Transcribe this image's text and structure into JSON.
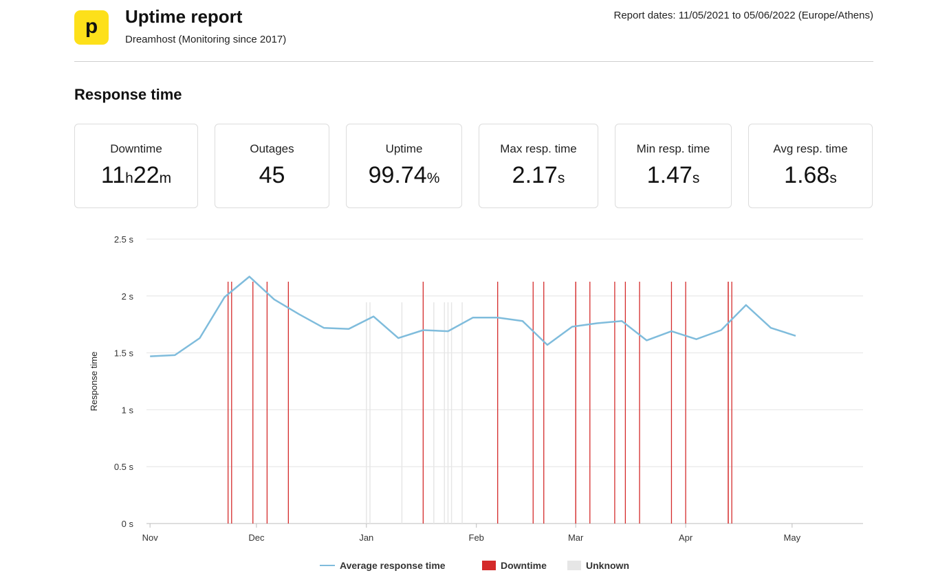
{
  "header": {
    "logo_letter": "p",
    "title": "Uptime report",
    "subtitle": "Dreamhost (Monitoring since 2017)",
    "report_dates": "Report dates: 11/05/2021 to 05/06/2022 (Europe/Athens)"
  },
  "section_title": "Response time",
  "stats": {
    "downtime": {
      "label": "Downtime",
      "h": "11",
      "h_unit": "h",
      "m": "22",
      "m_unit": "m"
    },
    "outages": {
      "label": "Outages",
      "value": "45"
    },
    "uptime": {
      "label": "Uptime",
      "value": "99.74",
      "unit": "%"
    },
    "max_resp": {
      "label": "Max resp. time",
      "value": "2.17",
      "unit": "s"
    },
    "min_resp": {
      "label": "Min resp. time",
      "value": "1.47",
      "unit": "s"
    },
    "avg_resp": {
      "label": "Avg resp. time",
      "value": "1.68",
      "unit": "s"
    }
  },
  "legend": {
    "average": "Average response time",
    "downtime": "Downtime",
    "unknown": "Unknown"
  },
  "colors": {
    "line": "#7fbcdc",
    "downtime": "#d42a2a",
    "unknown": "#e6e6e6",
    "grid": "#e4e4e4",
    "logo": "#fde01a"
  },
  "chart_data": {
    "type": "line",
    "title": "",
    "xlabel": "",
    "ylabel": "Response time",
    "ylim": [
      0,
      2.5
    ],
    "yticks": [
      0,
      0.5,
      1,
      1.5,
      2,
      2.5
    ],
    "ytick_labels": [
      "0 s",
      "0.5 s",
      "1 s",
      "1.5 s",
      "2 s",
      "2.5 s"
    ],
    "xlim": [
      "2021-10-31",
      "2022-05-21"
    ],
    "xticks": [
      "2021-11-01",
      "2021-12-01",
      "2022-01-01",
      "2022-02-01",
      "2022-03-01",
      "2022-04-01",
      "2022-05-01"
    ],
    "xtick_labels": [
      "Nov",
      "Dec",
      "Jan",
      "Feb",
      "Mar",
      "Apr",
      "May"
    ],
    "grid": true,
    "legend_position": "bottom",
    "series": [
      {
        "name": "Average response time",
        "x": [
          "2021-11-01",
          "2021-11-08",
          "2021-11-15",
          "2021-11-22",
          "2021-11-29",
          "2021-12-06",
          "2021-12-13",
          "2021-12-20",
          "2021-12-27",
          "2022-01-03",
          "2022-01-10",
          "2022-01-17",
          "2022-01-24",
          "2022-01-31",
          "2022-02-07",
          "2022-02-14",
          "2022-02-21",
          "2022-02-28",
          "2022-03-07",
          "2022-03-14",
          "2022-03-21",
          "2022-03-28",
          "2022-04-04",
          "2022-04-11",
          "2022-04-18",
          "2022-04-25",
          "2022-05-02"
        ],
        "y": [
          1.47,
          1.48,
          1.63,
          1.99,
          2.17,
          1.97,
          1.84,
          1.72,
          1.71,
          1.82,
          1.63,
          1.7,
          1.69,
          1.81,
          1.81,
          1.78,
          1.57,
          1.73,
          1.76,
          1.78,
          1.61,
          1.69,
          1.62,
          1.7,
          1.92,
          1.72,
          1.65
        ]
      }
    ],
    "downtime_events": [
      "2021-11-23",
      "2021-11-24",
      "2021-11-30",
      "2021-12-04",
      "2021-12-10",
      "2022-01-17",
      "2022-02-07",
      "2022-02-17",
      "2022-02-20",
      "2022-03-01",
      "2022-03-01",
      "2022-03-05",
      "2022-03-12",
      "2022-03-15",
      "2022-03-19",
      "2022-03-28",
      "2022-04-01",
      "2022-04-13",
      "2022-04-13",
      "2022-04-14"
    ],
    "unknown_events": [
      "2022-01-01",
      "2022-01-02",
      "2022-01-11",
      "2022-01-20",
      "2022-01-23",
      "2022-01-24",
      "2022-01-25",
      "2022-01-28"
    ]
  }
}
